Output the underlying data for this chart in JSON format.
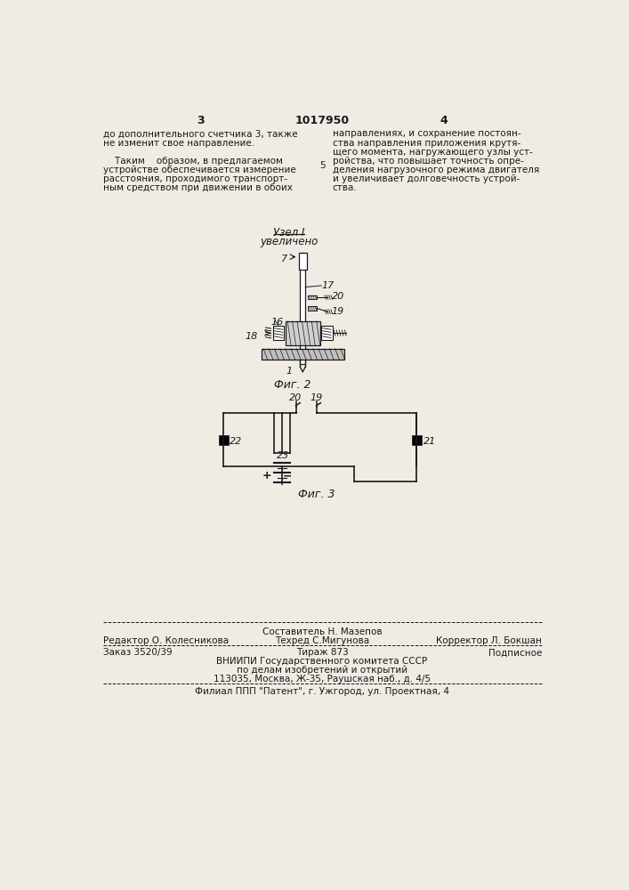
{
  "bg_color": "#f0ece4",
  "text_color": "#1a1a1a",
  "page_number_left": "3",
  "page_number_center": "1017950",
  "page_number_right": "4",
  "col_left_text": [
    "до дополнительного счетчика 3, также",
    "не изменит свое направление.",
    "",
    "    Таким    образом, в предлагаемом",
    "устройстве обеспечивается измерение",
    "расстояния, проходимого транспорт-",
    "ным средством при движении в обоих"
  ],
  "col_right_text": [
    "направлениях, и сохранение постоян-",
    "ства направления приложения крутя-",
    "щего момента, нагружающего узлы уст-",
    "ройства, что повышает точность опре-",
    "деления нагрузочного режима двигателя",
    "и увеличивает долговечность устрой-",
    "ства."
  ],
  "col_right_number": "5",
  "fig2_label": "Фиг. 2",
  "fig3_label": "Фиг. 3",
  "node_label_line1": "Узел I",
  "node_label_line2": "увеличено",
  "footer_line1_left": "Редактор О. Колесникова",
  "footer_line1_center_top": "Составитель Н. Мазепов",
  "footer_line1_center_bot": "Техред С.Мигунова",
  "footer_line1_right": "Корректор Л. Бокшан",
  "footer_line3_left": "Заказ 3520/39",
  "footer_line3_center": "Тираж 873",
  "footer_line3_right": "Подписное",
  "footer_line4": "ВНИИПИ Государственного комитета СССР",
  "footer_line5": "по делам изобретений и открытий",
  "footer_line6": "113035, Москва, Ж-35, Раушская наб., д. 4/5",
  "footer_line7": "Филиал ППП \"Патент\", г. Ужгород, ул. Проектная, 4"
}
